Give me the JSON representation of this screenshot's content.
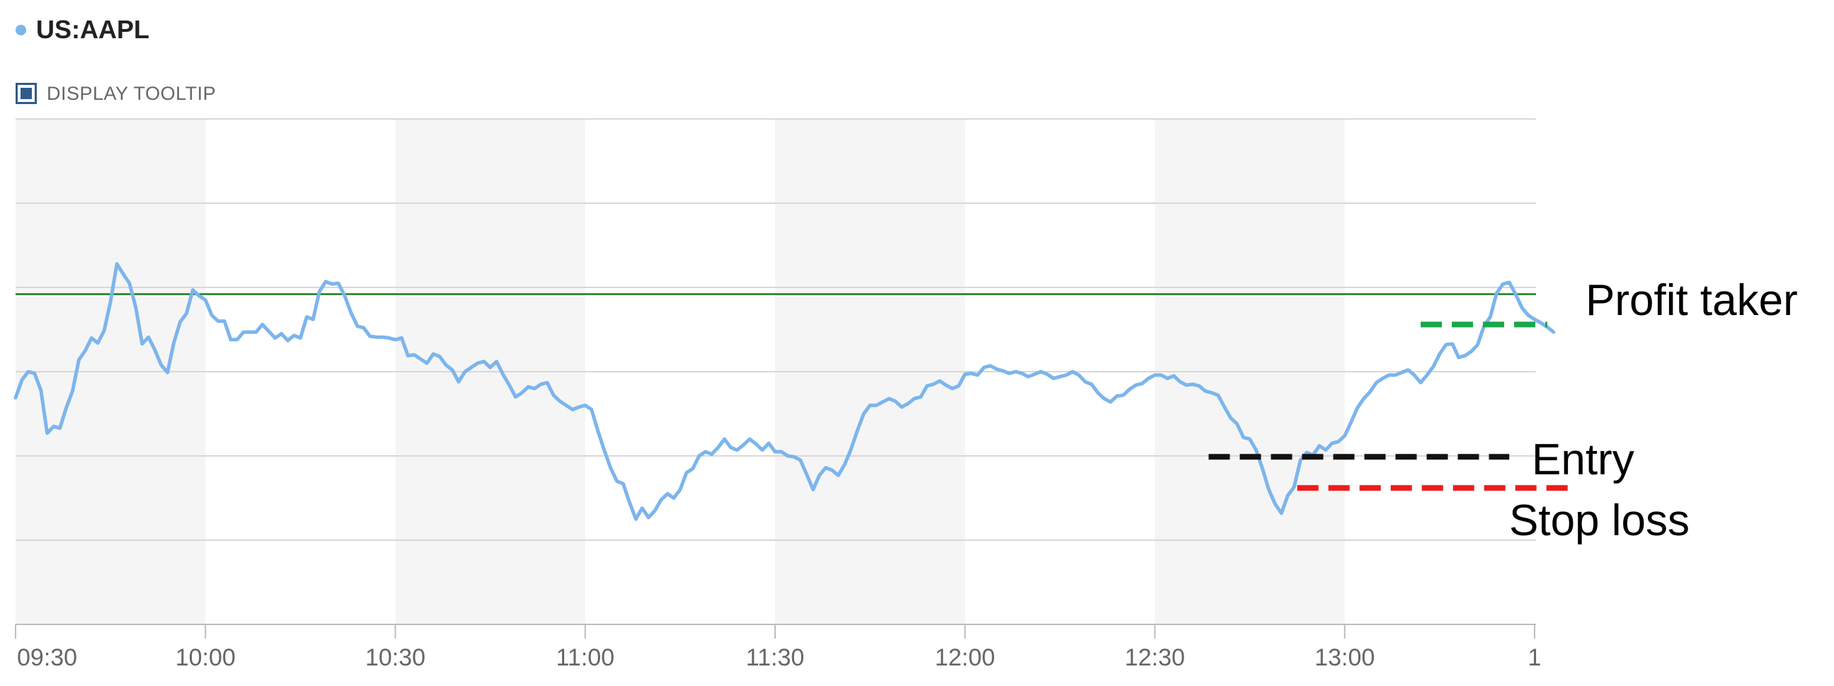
{
  "header": {
    "ticker": "US:AAPL",
    "tooltip_toggle_label": "DISPLAY TOOLTIP",
    "tooltip_checked": true
  },
  "colors": {
    "price_line": "#7cb5ec",
    "reference_line": "#1a7a1a",
    "profit_taker": "#1aa64a",
    "entry": "#111111",
    "stop_loss": "#ee1c1c",
    "gridline": "#d8d8d8",
    "band": "#f5f5f5",
    "axis_label": "#666666",
    "annotation_text": "#000000"
  },
  "chart_data": {
    "type": "line",
    "title": "",
    "xlabel": "",
    "ylabel": "",
    "x_axis": {
      "unit": "minutes",
      "range": [
        "09:30",
        "13:07"
      ],
      "ticks": [
        "09:30",
        "10:00",
        "10:30",
        "11:00",
        "11:30",
        "12:00",
        "12:30",
        "13:00",
        "1"
      ]
    },
    "y_axis": {
      "visible_labels": false,
      "range_relative": [
        0,
        6
      ],
      "gridline_levels": [
        0,
        1,
        2,
        3,
        4,
        5,
        6
      ]
    },
    "grid": true,
    "alternating_bands": true,
    "series": [
      {
        "values": [
          [
            0,
            2.69
          ],
          [
            1,
            2.9
          ],
          [
            2,
            3.0
          ],
          [
            3,
            2.98
          ],
          [
            4,
            2.78
          ],
          [
            5,
            2.27
          ],
          [
            6,
            2.35
          ],
          [
            7,
            2.33
          ],
          [
            8,
            2.57
          ],
          [
            9,
            2.77
          ],
          [
            10,
            3.14
          ],
          [
            11,
            3.25
          ],
          [
            12,
            3.4
          ],
          [
            13,
            3.34
          ],
          [
            14,
            3.49
          ],
          [
            15,
            3.83
          ],
          [
            16,
            4.28
          ],
          [
            17,
            4.16
          ],
          [
            18,
            4.05
          ],
          [
            19,
            3.76
          ],
          [
            20,
            3.33
          ],
          [
            21,
            3.41
          ],
          [
            22,
            3.26
          ],
          [
            23,
            3.08
          ],
          [
            24,
            2.99
          ],
          [
            25,
            3.34
          ],
          [
            26,
            3.59
          ],
          [
            27,
            3.69
          ],
          [
            28,
            3.97
          ],
          [
            29,
            3.9
          ],
          [
            30,
            3.85
          ],
          [
            31,
            3.67
          ],
          [
            32,
            3.6
          ],
          [
            33,
            3.6
          ],
          [
            34,
            3.38
          ],
          [
            35,
            3.38
          ],
          [
            36,
            3.47
          ],
          [
            37,
            3.47
          ],
          [
            38,
            3.47
          ],
          [
            39,
            3.56
          ],
          [
            40,
            3.48
          ],
          [
            41,
            3.4
          ],
          [
            42,
            3.45
          ],
          [
            43,
            3.37
          ],
          [
            44,
            3.43
          ],
          [
            45,
            3.4
          ],
          [
            46,
            3.65
          ],
          [
            47,
            3.62
          ],
          [
            48,
            3.95
          ],
          [
            49,
            4.07
          ],
          [
            50,
            4.04
          ],
          [
            51,
            4.05
          ],
          [
            52,
            3.9
          ],
          [
            53,
            3.7
          ],
          [
            54,
            3.54
          ],
          [
            55,
            3.52
          ],
          [
            56,
            3.42
          ],
          [
            57,
            3.41
          ],
          [
            58,
            3.41
          ],
          [
            59,
            3.4
          ],
          [
            60,
            3.38
          ],
          [
            61,
            3.4
          ],
          [
            62,
            3.19
          ],
          [
            63,
            3.2
          ],
          [
            64,
            3.15
          ],
          [
            65,
            3.1
          ],
          [
            66,
            3.21
          ],
          [
            67,
            3.18
          ],
          [
            68,
            3.08
          ],
          [
            69,
            3.02
          ],
          [
            70,
            2.88
          ],
          [
            71,
            3.0
          ],
          [
            72,
            3.05
          ],
          [
            73,
            3.1
          ],
          [
            74,
            3.12
          ],
          [
            75,
            3.05
          ],
          [
            76,
            3.12
          ],
          [
            77,
            2.97
          ],
          [
            78,
            2.84
          ],
          [
            79,
            2.7
          ],
          [
            80,
            2.75
          ],
          [
            81,
            2.82
          ],
          [
            82,
            2.8
          ],
          [
            83,
            2.85
          ],
          [
            84,
            2.87
          ],
          [
            85,
            2.72
          ],
          [
            86,
            2.65
          ],
          [
            87,
            2.6
          ],
          [
            88,
            2.55
          ],
          [
            89,
            2.58
          ],
          [
            90,
            2.6
          ],
          [
            91,
            2.55
          ],
          [
            92,
            2.3
          ],
          [
            93,
            2.07
          ],
          [
            94,
            1.86
          ],
          [
            95,
            1.7
          ],
          [
            96,
            1.67
          ],
          [
            97,
            1.45
          ],
          [
            98,
            1.25
          ],
          [
            99,
            1.38
          ],
          [
            100,
            1.27
          ],
          [
            101,
            1.35
          ],
          [
            102,
            1.48
          ],
          [
            103,
            1.55
          ],
          [
            104,
            1.5
          ],
          [
            105,
            1.6
          ],
          [
            106,
            1.8
          ],
          [
            107,
            1.85
          ],
          [
            108,
            2.0
          ],
          [
            109,
            2.05
          ],
          [
            110,
            2.02
          ],
          [
            111,
            2.1
          ],
          [
            112,
            2.2
          ],
          [
            113,
            2.1
          ],
          [
            114,
            2.07
          ],
          [
            115,
            2.13
          ],
          [
            116,
            2.2
          ],
          [
            117,
            2.14
          ],
          [
            118,
            2.07
          ],
          [
            119,
            2.15
          ],
          [
            120,
            2.05
          ],
          [
            121,
            2.05
          ],
          [
            122,
            2.0
          ],
          [
            123,
            1.99
          ],
          [
            124,
            1.95
          ],
          [
            125,
            1.78
          ],
          [
            126,
            1.6
          ],
          [
            127,
            1.77
          ],
          [
            128,
            1.86
          ],
          [
            129,
            1.83
          ],
          [
            130,
            1.77
          ],
          [
            131,
            1.9
          ],
          [
            132,
            2.08
          ],
          [
            133,
            2.3
          ],
          [
            134,
            2.5
          ],
          [
            135,
            2.6
          ],
          [
            136,
            2.6
          ],
          [
            137,
            2.64
          ],
          [
            138,
            2.68
          ],
          [
            139,
            2.65
          ],
          [
            140,
            2.58
          ],
          [
            141,
            2.62
          ],
          [
            142,
            2.68
          ],
          [
            143,
            2.7
          ],
          [
            144,
            2.83
          ],
          [
            145,
            2.85
          ],
          [
            146,
            2.89
          ],
          [
            147,
            2.84
          ],
          [
            148,
            2.8
          ],
          [
            149,
            2.83
          ],
          [
            150,
            2.97
          ],
          [
            151,
            2.98
          ],
          [
            152,
            2.96
          ],
          [
            153,
            3.05
          ],
          [
            154,
            3.07
          ],
          [
            155,
            3.03
          ],
          [
            156,
            3.01
          ],
          [
            157,
            2.98
          ],
          [
            158,
            3.0
          ],
          [
            159,
            2.98
          ],
          [
            160,
            2.94
          ],
          [
            161,
            2.97
          ],
          [
            162,
            3.0
          ],
          [
            163,
            2.97
          ],
          [
            164,
            2.92
          ],
          [
            165,
            2.94
          ],
          [
            166,
            2.96
          ],
          [
            167,
            3.0
          ],
          [
            168,
            2.96
          ],
          [
            169,
            2.88
          ],
          [
            170,
            2.85
          ],
          [
            171,
            2.75
          ],
          [
            172,
            2.68
          ],
          [
            173,
            2.64
          ],
          [
            174,
            2.71
          ],
          [
            175,
            2.72
          ],
          [
            176,
            2.79
          ],
          [
            177,
            2.84
          ],
          [
            178,
            2.86
          ],
          [
            179,
            2.92
          ],
          [
            180,
            2.96
          ],
          [
            181,
            2.96
          ],
          [
            182,
            2.92
          ],
          [
            183,
            2.95
          ],
          [
            184,
            2.88
          ],
          [
            185,
            2.84
          ],
          [
            186,
            2.85
          ],
          [
            187,
            2.83
          ],
          [
            188,
            2.77
          ],
          [
            189,
            2.75
          ],
          [
            190,
            2.72
          ],
          [
            191,
            2.58
          ],
          [
            192,
            2.45
          ],
          [
            193,
            2.38
          ],
          [
            194,
            2.22
          ],
          [
            195,
            2.2
          ],
          [
            196,
            2.07
          ],
          [
            197,
            1.85
          ],
          [
            198,
            1.6
          ],
          [
            199,
            1.43
          ],
          [
            200,
            1.32
          ],
          [
            201,
            1.53
          ],
          [
            202,
            1.63
          ],
          [
            203,
            1.95
          ],
          [
            204,
            2.04
          ],
          [
            205,
            2.01
          ],
          [
            206,
            2.12
          ],
          [
            207,
            2.07
          ],
          [
            208,
            2.15
          ],
          [
            209,
            2.17
          ],
          [
            210,
            2.24
          ],
          [
            211,
            2.4
          ],
          [
            212,
            2.57
          ],
          [
            213,
            2.68
          ],
          [
            214,
            2.76
          ],
          [
            215,
            2.87
          ],
          [
            216,
            2.92
          ],
          [
            217,
            2.96
          ],
          [
            218,
            2.96
          ],
          [
            219,
            2.99
          ],
          [
            220,
            3.02
          ],
          [
            221,
            2.96
          ],
          [
            222,
            2.87
          ],
          [
            223,
            2.96
          ],
          [
            224,
            3.06
          ],
          [
            225,
            3.21
          ],
          [
            226,
            3.32
          ],
          [
            227,
            3.33
          ],
          [
            228,
            3.17
          ],
          [
            229,
            3.19
          ],
          [
            230,
            3.24
          ],
          [
            231,
            3.32
          ],
          [
            232,
            3.54
          ],
          [
            233,
            3.65
          ],
          [
            234,
            3.93
          ],
          [
            235,
            4.04
          ],
          [
            236,
            4.06
          ],
          [
            237,
            3.92
          ],
          [
            238,
            3.76
          ],
          [
            239,
            3.67
          ],
          [
            240,
            3.62
          ],
          [
            241,
            3.58
          ],
          [
            242,
            3.53
          ],
          [
            243,
            3.47
          ]
        ]
      }
    ],
    "reference_line": {
      "y": 3.92
    },
    "annotations": [
      {
        "label": "Profit taker",
        "style": "dashed",
        "color": "#1aa64a",
        "y": 3.56,
        "x_start": 222,
        "x_end": 242
      },
      {
        "label": "Entry",
        "style": "dashed",
        "color": "#111111",
        "y": 1.99,
        "x_start": 188.5,
        "x_end": 236
      },
      {
        "label": "Stop loss",
        "style": "dashed",
        "color": "#ee1c1c",
        "y": 1.62,
        "x_start": 202.5,
        "x_end": 246
      }
    ]
  }
}
